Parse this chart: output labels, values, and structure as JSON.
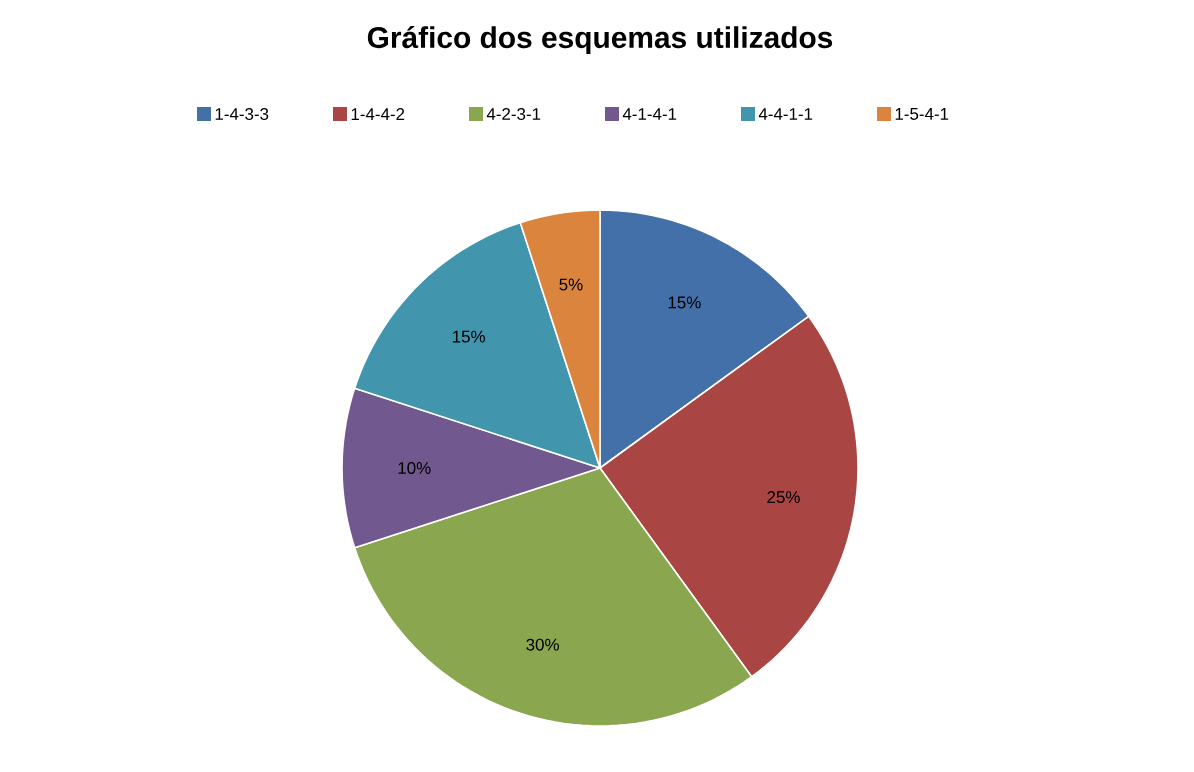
{
  "chart_data": {
    "type": "pie",
    "title": "Gráfico dos esquemas utilizados",
    "categories": [
      "1-4-3-3",
      "1-4-4-2",
      "4-2-3-1",
      "4-1-4-1",
      "4-4-1-1",
      "1-5-4-1"
    ],
    "values": [
      15,
      25,
      30,
      10,
      15,
      5
    ],
    "colors": [
      "#4470a9",
      "#a94542",
      "#8aa64e",
      "#71588f",
      "#4195ad",
      "#db843d"
    ],
    "value_labels": [
      "15%",
      "25%",
      "30%",
      "10%",
      "15%",
      "5%"
    ],
    "legend": "top"
  }
}
